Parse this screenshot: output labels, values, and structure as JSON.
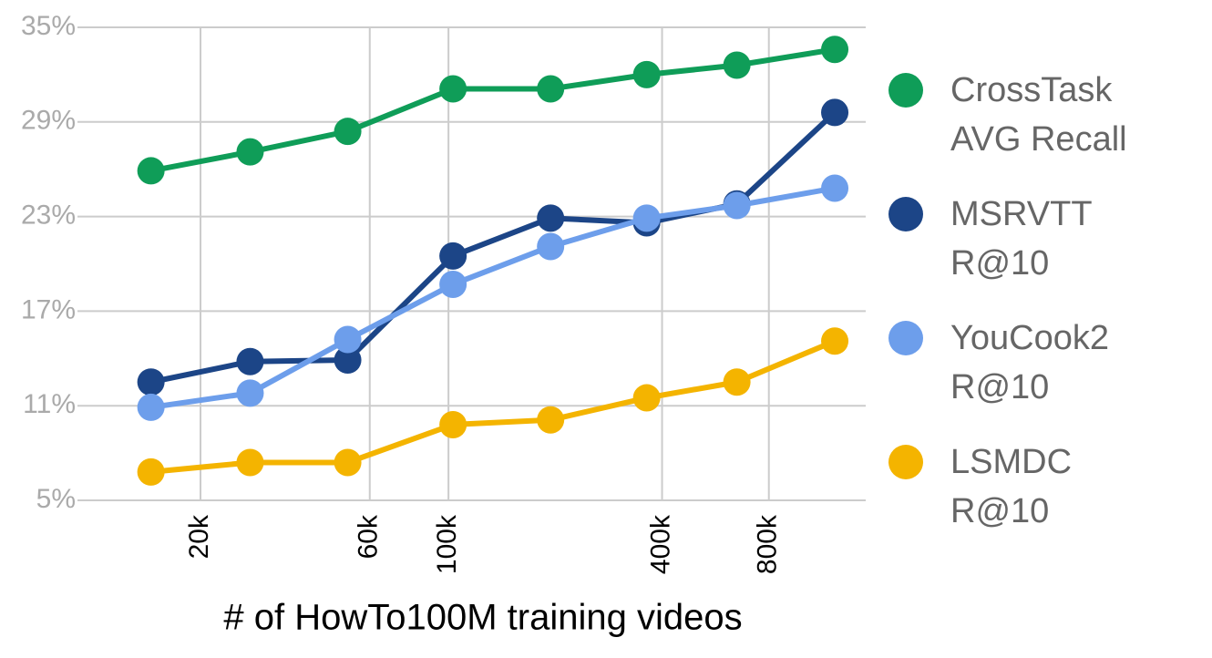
{
  "chart_data": {
    "type": "line",
    "xlabel": "# of HowTo100M training videos",
    "x": [
      14500,
      27600,
      52000,
      103000,
      194000,
      362000,
      650000,
      1227000
    ],
    "xscale": "log",
    "xlim": [
      9000,
      1500000
    ],
    "xticks": [
      {
        "value": 20000,
        "label": "20k"
      },
      {
        "value": 60000,
        "label": "60k"
      },
      {
        "value": 100000,
        "label": "100k"
      },
      {
        "value": 400000,
        "label": "400k"
      },
      {
        "value": 800000,
        "label": "800k"
      }
    ],
    "ylim": [
      5,
      35
    ],
    "yticks": [
      {
        "value": 5,
        "label": "5%"
      },
      {
        "value": 11,
        "label": "11%"
      },
      {
        "value": 17,
        "label": "17%"
      },
      {
        "value": 23,
        "label": "23%"
      },
      {
        "value": 29,
        "label": "29%"
      },
      {
        "value": 35,
        "label": "35%"
      }
    ],
    "grid": true,
    "legend": "right",
    "series": [
      {
        "name": "CrossTask AVG Recall",
        "color": "#0f9d58",
        "values": [
          25.9,
          27.1,
          28.4,
          31.1,
          31.1,
          32.0,
          32.6,
          33.6
        ]
      },
      {
        "name": "MSRVTT R@10",
        "color": "#1c4587",
        "values": [
          12.5,
          13.8,
          13.9,
          20.5,
          22.9,
          22.6,
          23.8,
          29.6
        ]
      },
      {
        "name": "YouCook2 R@10",
        "color": "#6d9eeb",
        "values": [
          10.9,
          11.8,
          15.2,
          18.7,
          21.1,
          22.9,
          23.7,
          24.8
        ]
      },
      {
        "name": "LSMDC R@10",
        "color": "#f4b400",
        "values": [
          6.8,
          7.4,
          7.4,
          9.8,
          10.1,
          11.5,
          12.5,
          15.1
        ]
      }
    ]
  }
}
